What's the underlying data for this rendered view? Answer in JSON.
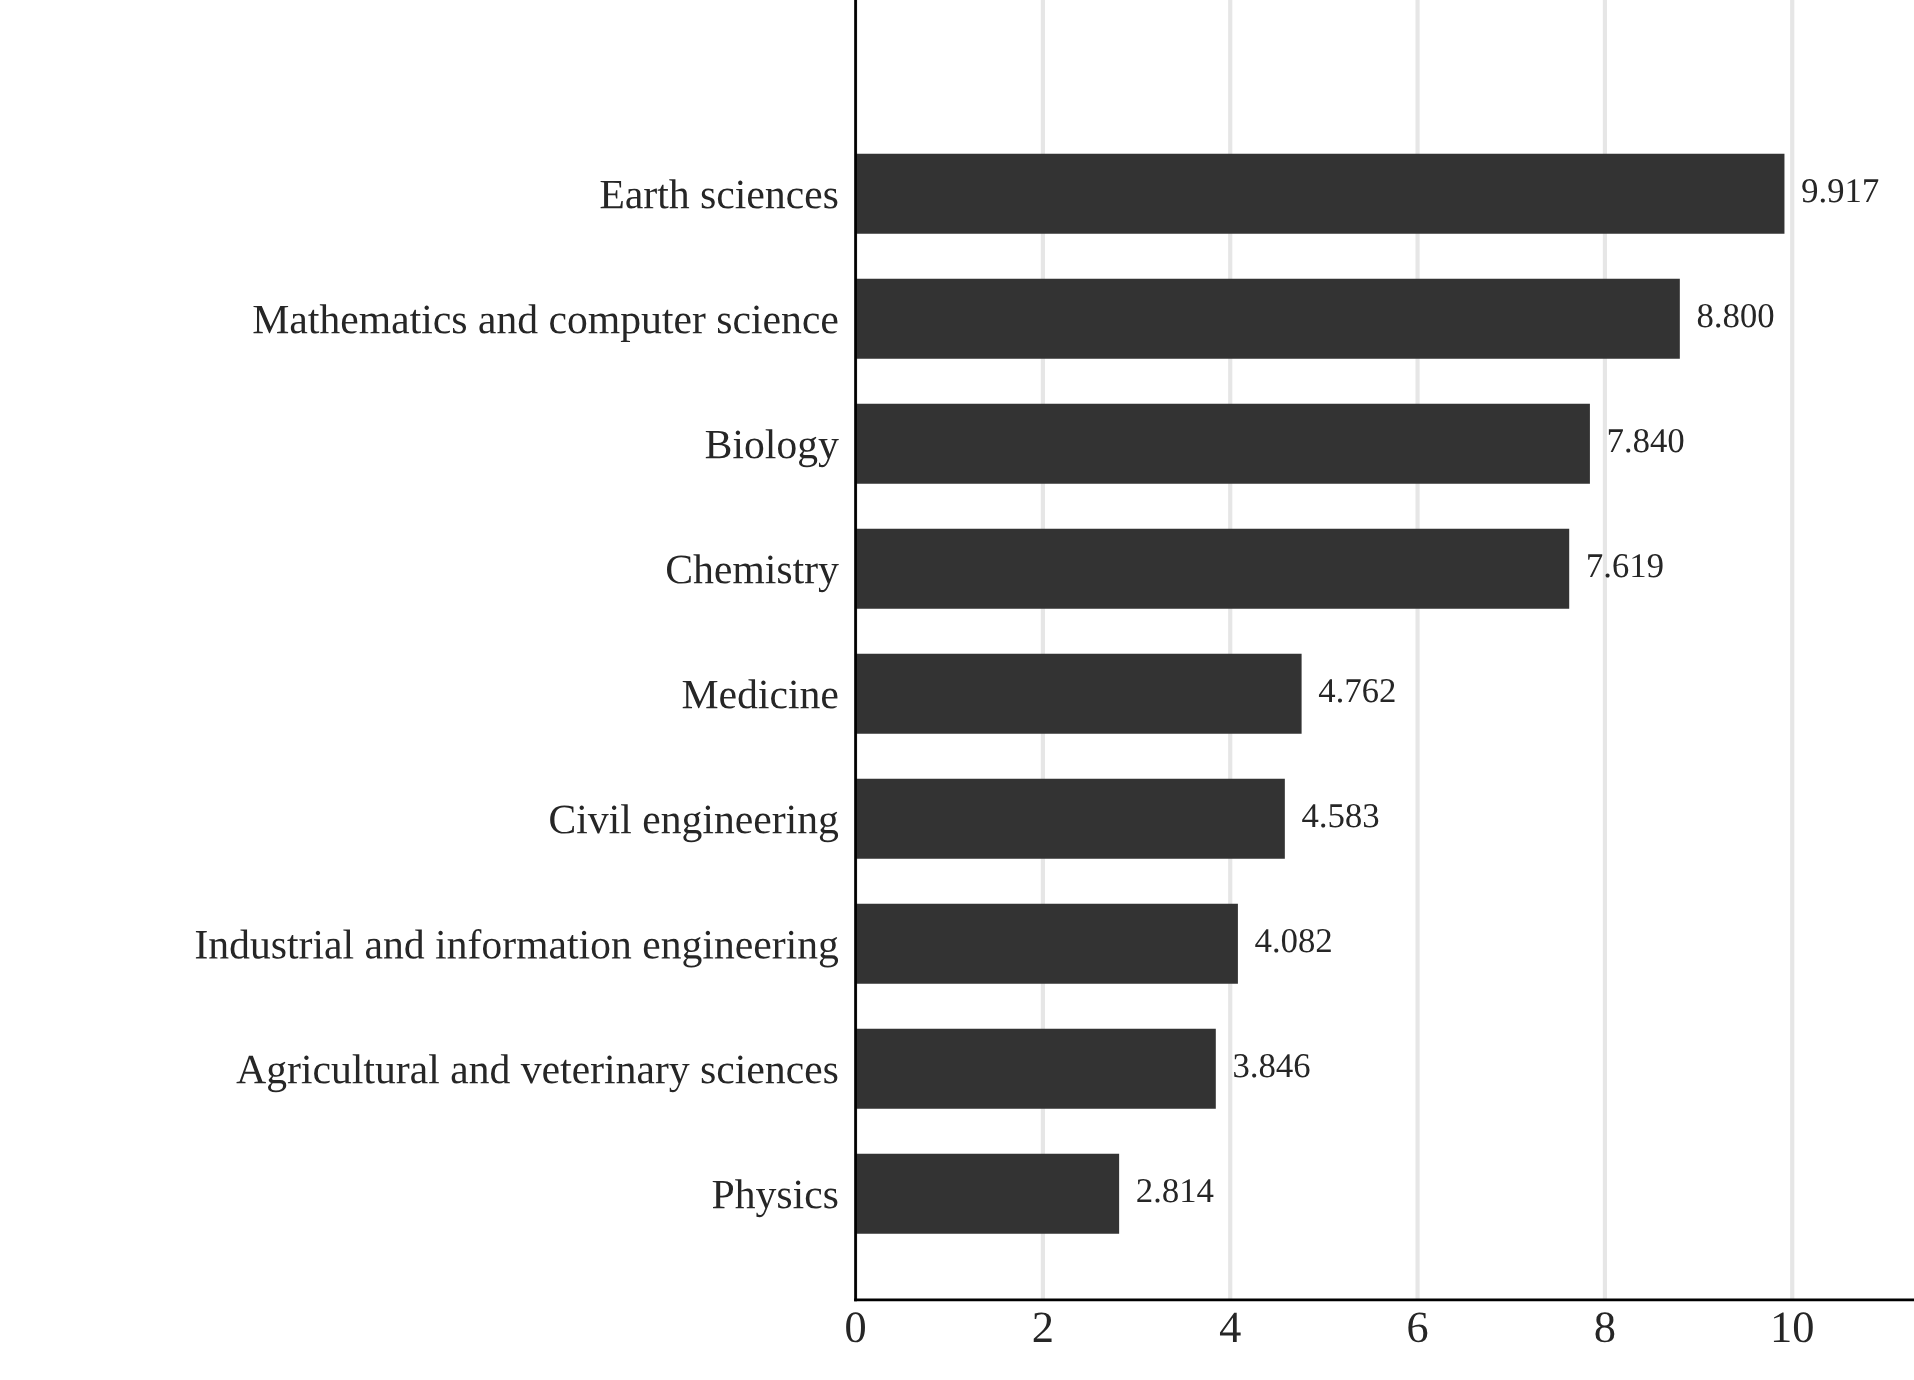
{
  "chart_data": {
    "type": "bar",
    "orientation": "horizontal",
    "categories": [
      "Earth sciences",
      "Mathematics and computer science",
      "Biology",
      "Chemistry",
      "Medicine",
      "Civil engineering",
      "Industrial and information engineering",
      "Agricultural and veterinary sciences",
      "Physics"
    ],
    "values": [
      9.917,
      8.8,
      7.84,
      7.619,
      4.762,
      4.583,
      4.082,
      3.846,
      2.814
    ],
    "value_labels": [
      "9.917",
      "8.800",
      "7.840",
      "7.619",
      "4.762",
      "4.583",
      "4.082",
      "3.846",
      "2.814"
    ],
    "color": "#333333",
    "xlim": [
      0,
      11.3
    ],
    "xticks": [
      0,
      2,
      4,
      6,
      8,
      10
    ],
    "grid": "x",
    "legend": false
  }
}
